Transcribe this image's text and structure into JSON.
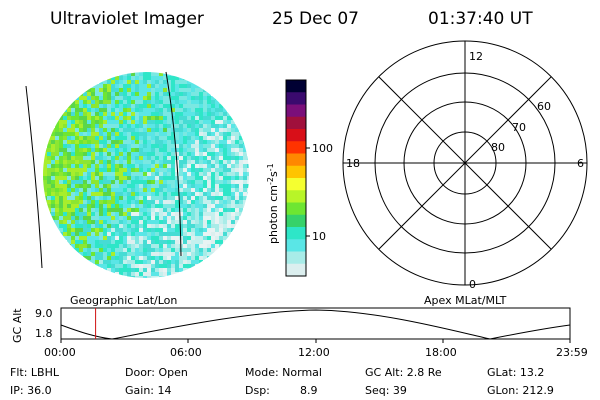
{
  "header": {
    "instrument": "Ultraviolet Imager",
    "date": "25 Dec 07",
    "time": "01:37:40 UT"
  },
  "colorbar": {
    "unit_label": "photon cm",
    "unit_exp1": "-2",
    "unit_s": "s",
    "unit_exp2": "-1",
    "tick_100": "100",
    "tick_10": "10",
    "colors": [
      "#000033",
      "#3a0a6e",
      "#7a0f7a",
      "#a0103c",
      "#d80f18",
      "#ff3300",
      "#ff8800",
      "#ffc400",
      "#f5ff30",
      "#b8f528",
      "#6ee632",
      "#36d26a",
      "#2ee6c8",
      "#5ae6e6",
      "#a8ece8",
      "#dcefef"
    ]
  },
  "polar": {
    "mlt_labels": [
      "12",
      "18",
      "6",
      "0"
    ],
    "lat_labels": [
      "60",
      "70",
      "80"
    ]
  },
  "timeline": {
    "y_axis_label": "GC Alt",
    "y_ticks": [
      "9.0",
      "1.8"
    ],
    "left_label": "Geographic Lat/Lon",
    "right_label": "Apex MLat/MLT",
    "x_ticks": [
      "00:00",
      "06:00",
      "12:00",
      "18:00",
      "23:59"
    ],
    "current_time_fraction": 0.068
  },
  "info": {
    "row1": {
      "flt": "Flt: LBHL",
      "door": "Door: Open",
      "mode": "Mode: Normal",
      "gc_alt": "GC Alt: 2.8 Re",
      "glat": "GLat:  13.2"
    },
    "row2": {
      "ip": "IP: 36.0",
      "gain": "Gain: 14",
      "dsp_label": "Dsp:",
      "dsp_value": "8.9",
      "seq": "Seq: 39",
      "glon": "GLon: 212.9"
    }
  }
}
